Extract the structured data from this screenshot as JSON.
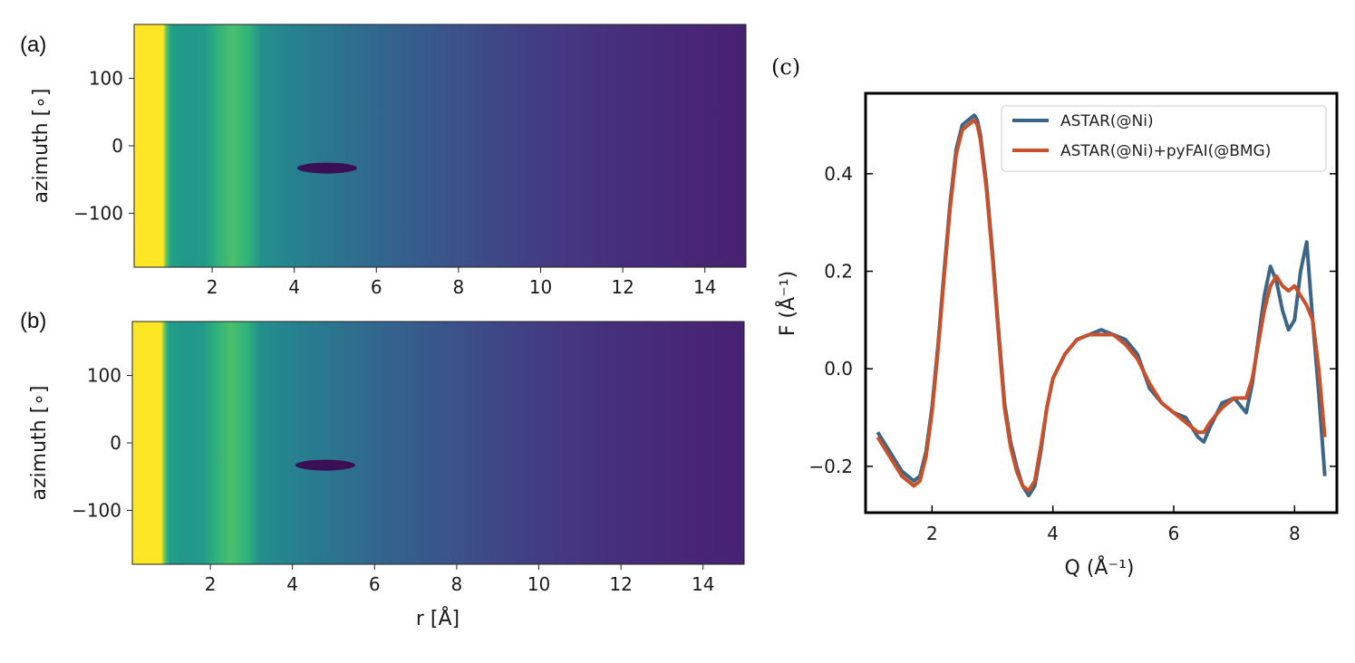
{
  "colors": {
    "viridis": [
      "#440154",
      "#482878",
      "#3e4989",
      "#31688e",
      "#26828e",
      "#1f9e89",
      "#35b779",
      "#6ece58",
      "#b5de2b",
      "#fde725"
    ],
    "series_blue": "#3b6686",
    "series_red": "#c8502a"
  },
  "chart_data": [
    {
      "panel": "(a)",
      "type": "heatmap",
      "xlabel": "",
      "ylabel": "azimuth [∘]",
      "xlim": [
        0.1,
        15
      ],
      "ylim": [
        -180,
        180
      ],
      "xticks": [
        "2",
        "4",
        "6",
        "8",
        "10",
        "12",
        "14"
      ],
      "yticks": [
        "100",
        "0",
        "−100"
      ],
      "radial_profile": [
        [
          0.1,
          1.0
        ],
        [
          0.8,
          1.0
        ],
        [
          0.9,
          0.72
        ],
        [
          1.0,
          0.56
        ],
        [
          1.3,
          0.53
        ],
        [
          1.8,
          0.54
        ],
        [
          2.1,
          0.63
        ],
        [
          2.5,
          0.71
        ],
        [
          2.9,
          0.64
        ],
        [
          3.2,
          0.5
        ],
        [
          4.0,
          0.44
        ],
        [
          6.0,
          0.33
        ],
        [
          8.0,
          0.25
        ],
        [
          10.0,
          0.18
        ],
        [
          12.0,
          0.13
        ],
        [
          15.0,
          0.09
        ]
      ],
      "dark_spot": {
        "r": 4.8,
        "azimuth": -33
      }
    },
    {
      "panel": "(b)",
      "type": "heatmap",
      "xlabel": "r [Å]",
      "ylabel": "azimuth [∘]",
      "xlim": [
        0.1,
        15
      ],
      "ylim": [
        -180,
        180
      ],
      "xticks": [
        "2",
        "4",
        "6",
        "8",
        "10",
        "12",
        "14"
      ],
      "yticks": [
        "100",
        "0",
        "−100"
      ],
      "radial_profile": [
        [
          0.1,
          1.0
        ],
        [
          0.8,
          1.0
        ],
        [
          0.9,
          0.72
        ],
        [
          1.0,
          0.56
        ],
        [
          1.3,
          0.53
        ],
        [
          1.8,
          0.54
        ],
        [
          2.1,
          0.63
        ],
        [
          2.5,
          0.71
        ],
        [
          2.9,
          0.64
        ],
        [
          3.2,
          0.5
        ],
        [
          4.0,
          0.44
        ],
        [
          6.0,
          0.33
        ],
        [
          8.0,
          0.25
        ],
        [
          10.0,
          0.18
        ],
        [
          12.0,
          0.13
        ],
        [
          15.0,
          0.09
        ]
      ],
      "dark_spot": {
        "r": 4.8,
        "azimuth": -33
      }
    },
    {
      "panel": "(c)",
      "type": "line",
      "xlabel": "Q (Å⁻¹)",
      "ylabel": "F (Å⁻¹)",
      "xlim": [
        0.9,
        8.7
      ],
      "ylim": [
        -0.295,
        0.565
      ],
      "xticks": [
        2,
        4,
        6,
        8
      ],
      "yticks": [
        -0.2,
        0.0,
        0.2,
        0.4
      ],
      "ytick_labels": [
        "−0.2",
        "0.0",
        "0.2",
        "0.4"
      ],
      "legend": "top-right",
      "series": [
        {
          "name": "ASTAR(@Ni)",
          "x": [
            1.1,
            1.3,
            1.5,
            1.7,
            1.8,
            1.9,
            2.0,
            2.1,
            2.2,
            2.3,
            2.4,
            2.5,
            2.6,
            2.7,
            2.75,
            2.8,
            2.9,
            3.0,
            3.1,
            3.2,
            3.3,
            3.4,
            3.5,
            3.6,
            3.7,
            3.8,
            3.9,
            4.0,
            4.2,
            4.4,
            4.6,
            4.8,
            5.0,
            5.2,
            5.4,
            5.6,
            5.8,
            6.0,
            6.2,
            6.4,
            6.5,
            6.6,
            6.8,
            7.0,
            7.2,
            7.3,
            7.4,
            7.5,
            7.6,
            7.7,
            7.8,
            7.9,
            8.0,
            8.1,
            8.2,
            8.3,
            8.4,
            8.5
          ],
          "y": [
            -0.13,
            -0.17,
            -0.21,
            -0.23,
            -0.22,
            -0.17,
            -0.08,
            0.05,
            0.2,
            0.34,
            0.45,
            0.5,
            0.51,
            0.52,
            0.51,
            0.48,
            0.38,
            0.24,
            0.08,
            -0.07,
            -0.15,
            -0.2,
            -0.24,
            -0.26,
            -0.24,
            -0.17,
            -0.08,
            -0.02,
            0.03,
            0.06,
            0.07,
            0.08,
            0.07,
            0.06,
            0.03,
            -0.04,
            -0.07,
            -0.09,
            -0.1,
            -0.14,
            -0.15,
            -0.12,
            -0.07,
            -0.06,
            -0.09,
            -0.03,
            0.06,
            0.15,
            0.21,
            0.18,
            0.12,
            0.08,
            0.1,
            0.2,
            0.26,
            0.1,
            -0.05,
            -0.22
          ]
        },
        {
          "name": "ASTAR(@Ni)+pyFAI(@BMG)",
          "x": [
            1.1,
            1.3,
            1.5,
            1.7,
            1.8,
            1.9,
            2.0,
            2.1,
            2.2,
            2.3,
            2.4,
            2.5,
            2.6,
            2.7,
            2.75,
            2.8,
            2.9,
            3.0,
            3.1,
            3.2,
            3.3,
            3.4,
            3.5,
            3.6,
            3.7,
            3.8,
            3.9,
            4.0,
            4.2,
            4.4,
            4.6,
            4.8,
            5.0,
            5.2,
            5.4,
            5.6,
            5.8,
            6.0,
            6.2,
            6.4,
            6.5,
            6.6,
            6.8,
            7.0,
            7.2,
            7.3,
            7.4,
            7.5,
            7.6,
            7.7,
            7.8,
            7.9,
            8.0,
            8.1,
            8.2,
            8.3,
            8.4,
            8.5
          ],
          "y": [
            -0.14,
            -0.18,
            -0.22,
            -0.24,
            -0.23,
            -0.18,
            -0.09,
            0.04,
            0.19,
            0.33,
            0.44,
            0.49,
            0.5,
            0.51,
            0.5,
            0.47,
            0.37,
            0.23,
            0.07,
            -0.08,
            -0.16,
            -0.21,
            -0.24,
            -0.25,
            -0.23,
            -0.16,
            -0.08,
            -0.02,
            0.03,
            0.06,
            0.07,
            0.07,
            0.07,
            0.05,
            0.02,
            -0.03,
            -0.07,
            -0.09,
            -0.11,
            -0.13,
            -0.13,
            -0.11,
            -0.08,
            -0.06,
            -0.06,
            -0.02,
            0.05,
            0.12,
            0.17,
            0.19,
            0.17,
            0.16,
            0.17,
            0.15,
            0.13,
            0.1,
            0.0,
            -0.14
          ]
        }
      ]
    }
  ]
}
